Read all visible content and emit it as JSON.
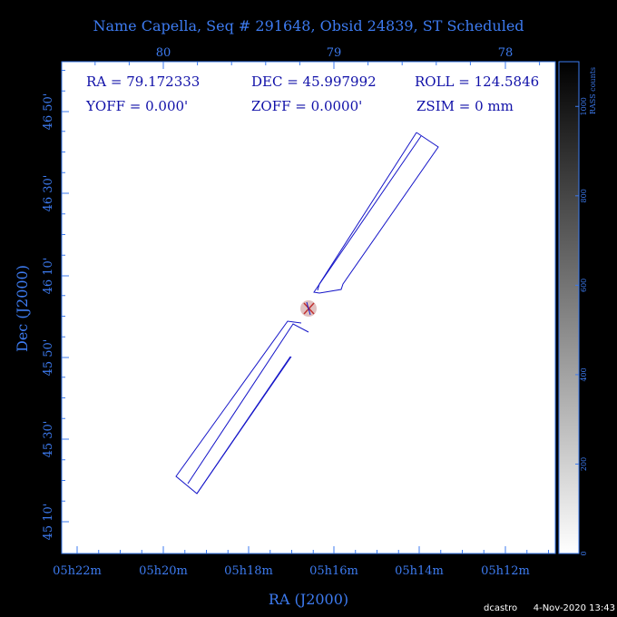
{
  "title": "Name Capella, Seq # 291648, Obsid 24839, ST Scheduled",
  "chart_data": {
    "type": "scatter",
    "xlabel": "RA (J2000)",
    "ylabel": "Dec (J2000)",
    "x_ticks_bottom": [
      "05h22m",
      "05h20m",
      "05h18m",
      "05h16m",
      "05h14m",
      "05h12m"
    ],
    "x_ticks_top": [
      "80",
      "79",
      "78"
    ],
    "y_ticks": [
      "45 10'",
      "45 30'",
      "45 50'",
      "46 10'",
      "46 30'",
      "46 50'"
    ],
    "colorbar": {
      "label": "RASS counts",
      "ticks": [
        "0",
        "200",
        "400",
        "600",
        "800",
        "1000"
      ],
      "range": [
        0,
        1100
      ]
    },
    "info": [
      {
        "label": "RA",
        "value": "79.172333"
      },
      {
        "label": "DEC",
        "value": "45.997992"
      },
      {
        "label": "ROLL",
        "value": "124.5846"
      },
      {
        "label": "YOFF",
        "value": "0.000'"
      },
      {
        "label": "ZOFF",
        "value": "0.0000'"
      },
      {
        "label": "ZSIM",
        "value": "0 mm"
      }
    ],
    "target": {
      "ra_deg": 79.172333,
      "dec_deg": 45.997992
    },
    "colors": {
      "axis": "#3d7bf0",
      "outline": "#1515c8",
      "marker": "#c03030"
    }
  },
  "footer": {
    "user": "dcastro",
    "date": "4-Nov-2020 13:43"
  }
}
